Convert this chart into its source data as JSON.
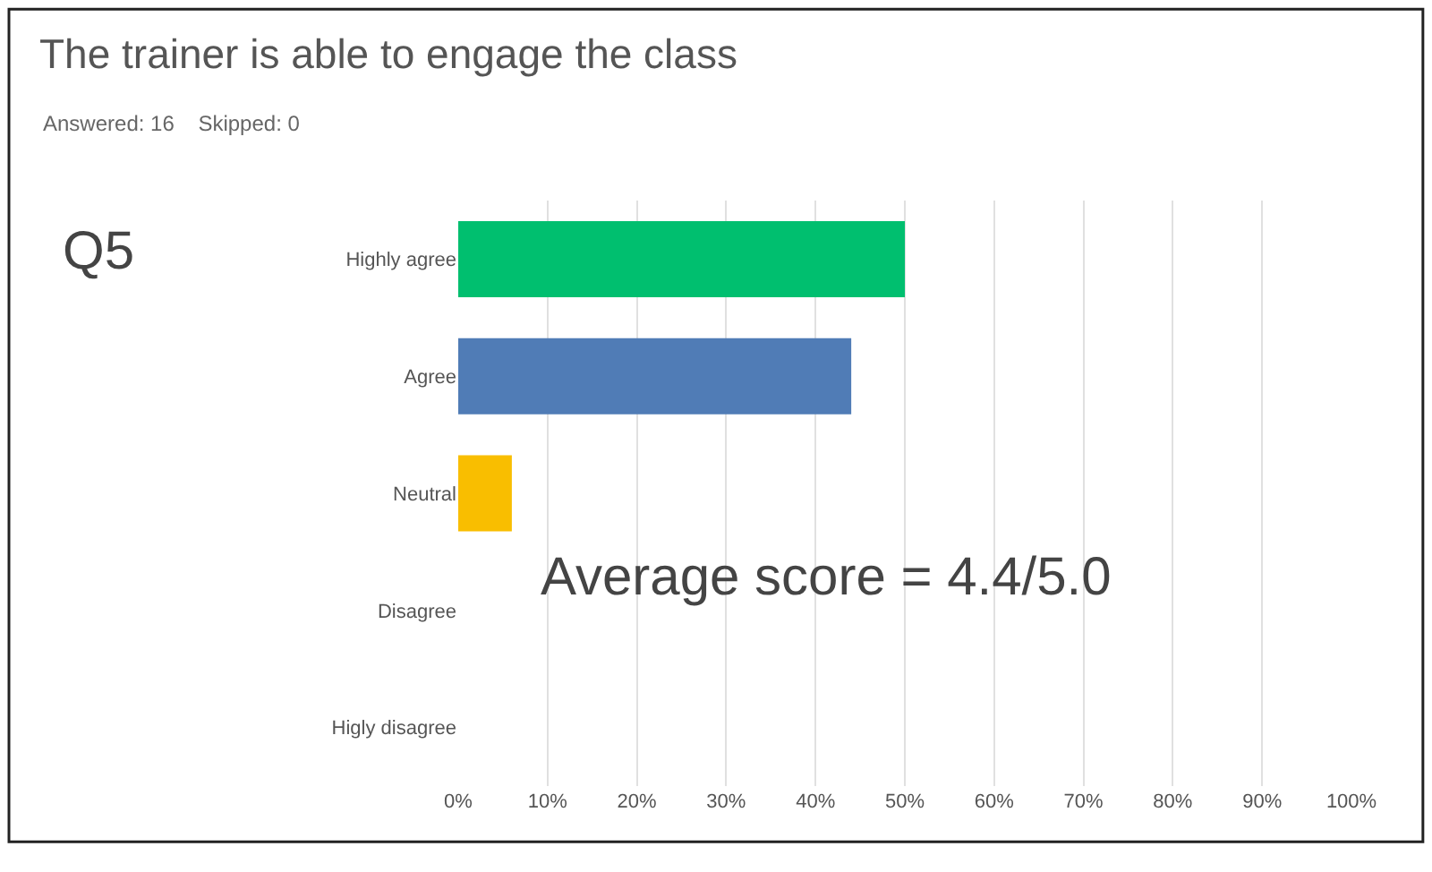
{
  "chart_data": {
    "type": "bar",
    "orientation": "horizontal",
    "title": "The trainer is able to engage the class",
    "subtitle": "Answered: 16    Skipped: 0",
    "categories": [
      "Highly agree",
      "Agree",
      "Neutral",
      "Disagree",
      "Higly disagree"
    ],
    "values": [
      50,
      44,
      6,
      0,
      0
    ],
    "colors": [
      "#00bf6f",
      "#507cb6",
      "#f9be00",
      "#999999",
      "#999999"
    ],
    "xlim": [
      0,
      100
    ],
    "xticks": [
      {
        "value": 0,
        "label": "0%"
      },
      {
        "value": 10,
        "label": "10%"
      },
      {
        "value": 20,
        "label": "20%"
      },
      {
        "value": 30,
        "label": "30%"
      },
      {
        "value": 40,
        "label": "40%"
      },
      {
        "value": 50,
        "label": "50%"
      },
      {
        "value": 60,
        "label": "60%"
      },
      {
        "value": 70,
        "label": "70%"
      },
      {
        "value": 80,
        "label": "80%"
      },
      {
        "value": 90,
        "label": "90%"
      },
      {
        "value": 100,
        "label": "100%"
      }
    ],
    "grid": "x",
    "legend": false,
    "annotations": [
      "Q5",
      "Average score = 4.4/5.0"
    ]
  }
}
